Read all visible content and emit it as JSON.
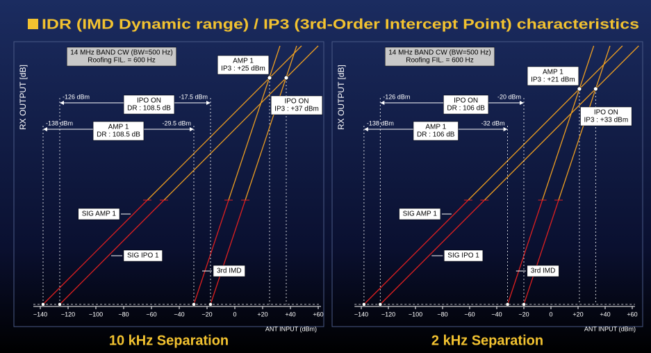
{
  "title": "IDR (IMD Dynamic range) / IP3 (3rd-Order Intercept Point) characteristics",
  "y_axis_label": "RX OUTPUT [dB]",
  "x_axis_label": "ANT INPUT (dBm)",
  "imd_label": "3rd IMD",
  "panels": [
    {
      "caption": "10 kHz Separation",
      "info": [
        "14 MHz BAND CW (BW=500 Hz)",
        "Roofing FIL. = 600 Hz"
      ],
      "xlim": [
        -145,
        62
      ],
      "xticks": [
        {
          "value": -140,
          "label": "−140"
        },
        {
          "value": -120,
          "label": "−120"
        },
        {
          "value": -100,
          "label": "−100"
        },
        {
          "value": -80,
          "label": "−80"
        },
        {
          "value": -60,
          "label": "−60"
        },
        {
          "value": -40,
          "label": "−40"
        },
        {
          "value": -20,
          "label": "−20"
        },
        0,
        {
          "value": 20,
          "label": "+20"
        },
        {
          "value": 40,
          "label": "+40"
        },
        {
          "value": 60,
          "label": "+60"
        }
      ],
      "traces": [
        {
          "name": "AMP 1",
          "sig_label": "SIG AMP 1",
          "floor": -138,
          "floor_label": "-138 dBm",
          "imd": -29.5,
          "imd_text": "-29.5 dBm",
          "ip3": 25,
          "ip3_label": "IP3 : +25 dBm",
          "dr_label": "DR : 108.5 dB"
        },
        {
          "name": "IPO ON",
          "sig_label": "SIG IPO 1",
          "floor": -126,
          "floor_label": "-126 dBm",
          "imd": -17.5,
          "imd_text": "-17.5 dBm",
          "ip3": 37,
          "ip3_label": "IP3 : +37 dBm",
          "dr_label": "DR : 108.5 dB"
        }
      ]
    },
    {
      "caption": "2 kHz Separation",
      "info": [
        "14 MHz BAND CW (BW=500 Hz)",
        "Roofing FIL. = 600 Hz"
      ],
      "xlim": [
        -145,
        62
      ],
      "xticks": [
        {
          "value": -140,
          "label": "−140"
        },
        {
          "value": -120,
          "label": "−120"
        },
        {
          "value": -100,
          "label": "−100"
        },
        {
          "value": -80,
          "label": "−80"
        },
        {
          "value": -60,
          "label": "−60"
        },
        {
          "value": -40,
          "label": "−40"
        },
        {
          "value": -20,
          "label": "−20"
        },
        0,
        {
          "value": 20,
          "label": "+20"
        },
        {
          "value": 40,
          "label": "+40"
        },
        {
          "value": 60,
          "label": "+60"
        }
      ],
      "traces": [
        {
          "name": "AMP 1",
          "sig_label": "SIG AMP 1",
          "floor": -138,
          "floor_label": "-138 dBm",
          "imd": -32,
          "imd_text": "-32 dBm",
          "ip3": 21,
          "ip3_label": "IP3 : +21 dBm",
          "dr_label": "DR : 106 dB"
        },
        {
          "name": "IPO ON",
          "sig_label": "SIG IPO 1",
          "floor": -126,
          "floor_label": "-126 dBm",
          "imd": -20,
          "imd_text": "-20 dBm",
          "ip3": 33,
          "ip3_label": "IP3 : +33 dBm",
          "dr_label": "DR : 106 dB"
        }
      ]
    }
  ]
}
